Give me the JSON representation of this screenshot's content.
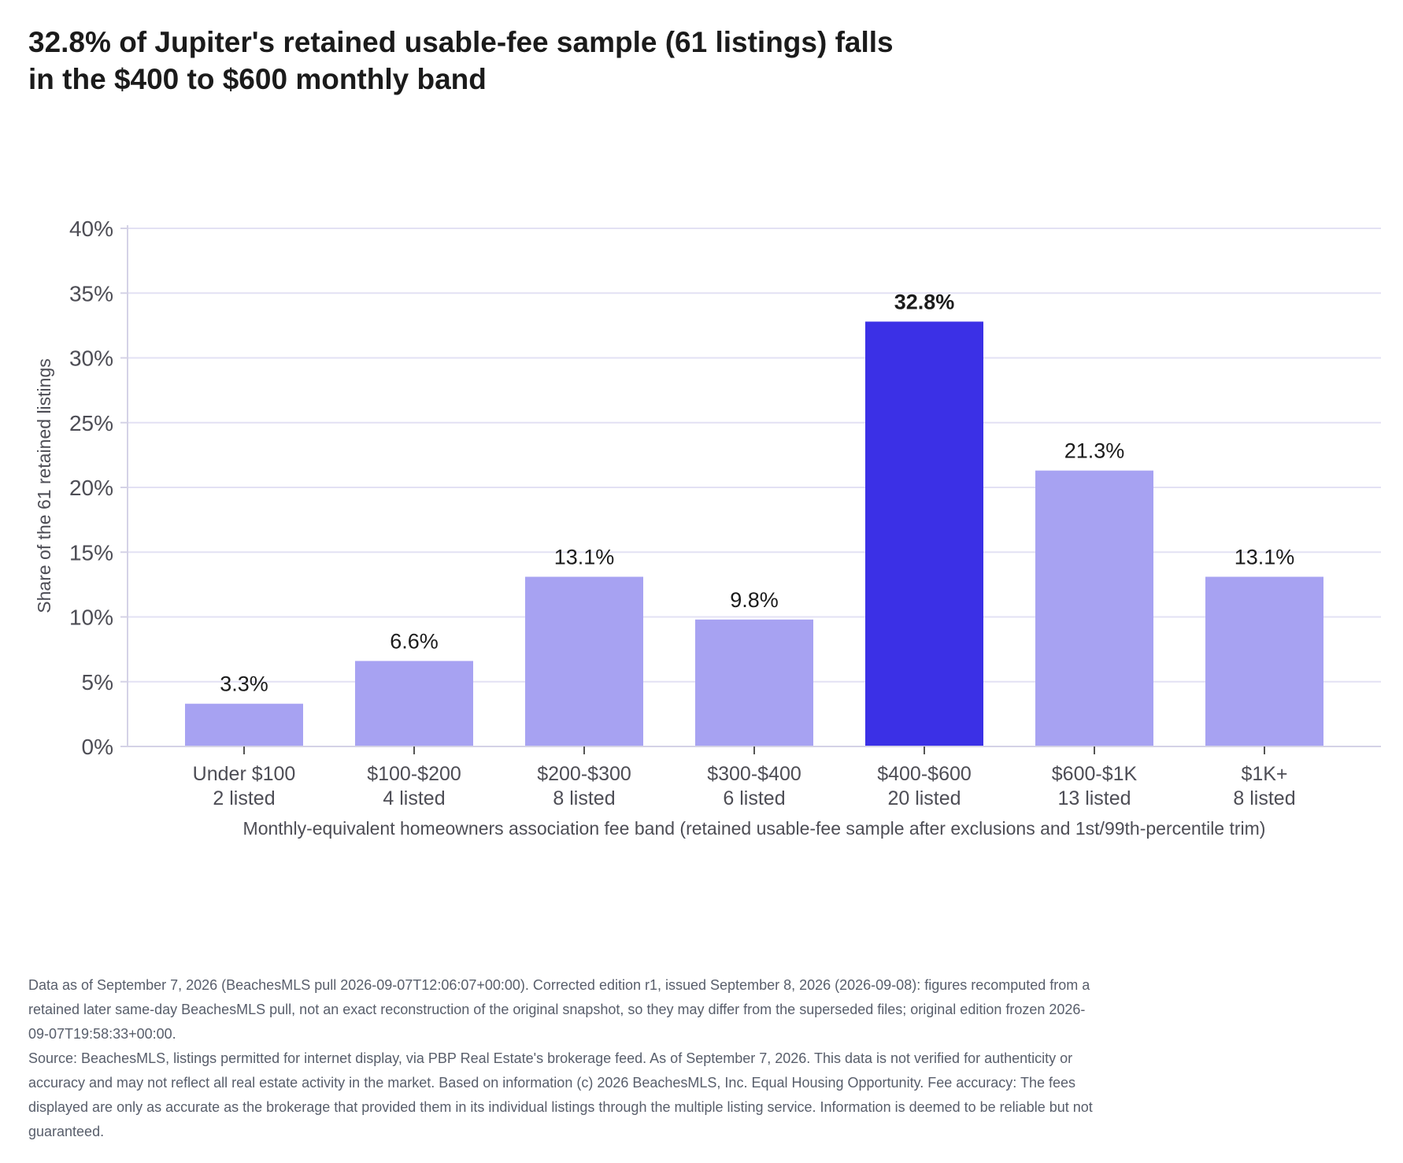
{
  "title_lines": [
    "32.8% of Jupiter's retained usable-fee sample (61 listings) falls",
    "in the $400 to $600 monthly band"
  ],
  "chart_data": {
    "type": "bar",
    "categories": [
      "Under $100",
      "$100-$200",
      "$200-$300",
      "$300-$400",
      "$400-$600",
      "$600-$1K",
      "$1K+"
    ],
    "counts": [
      "2 listed",
      "4 listed",
      "8 listed",
      "6 listed",
      "20 listed",
      "13 listed",
      "8 listed"
    ],
    "values": [
      3.3,
      6.6,
      13.1,
      9.8,
      32.8,
      21.3,
      13.1
    ],
    "data_labels": [
      "3.3%",
      "6.6%",
      "13.1%",
      "9.8%",
      "32.8%",
      "21.3%",
      "13.1%"
    ],
    "highlight_index": 4,
    "ylim": [
      0,
      40
    ],
    "yticks": [
      0,
      5,
      10,
      15,
      20,
      25,
      30,
      35,
      40
    ],
    "ytick_labels": [
      "0%",
      "5%",
      "10%",
      "15%",
      "20%",
      "25%",
      "30%",
      "35%",
      "40%"
    ],
    "ylabel": "Share of the 61 retained listings",
    "xlabel": "Monthly-equivalent homeowners association fee band (retained usable-fee sample after exclusions and 1st/99th-percentile trim)",
    "grid": true,
    "colors": {
      "bar": "#a7a2f2",
      "highlight": "#3b30e6",
      "grid": "#e3e1f4",
      "axis": "#d4d2e6"
    }
  },
  "footnote": {
    "paragraph1": "Data as of September 7, 2026 (BeachesMLS pull 2026-09-07T12:06:07+00:00). Corrected edition r1, issued September 8, 2026 (2026-09-08): figures recomputed from a retained later same-day BeachesMLS pull, not an exact reconstruction of the original snapshot, so they may differ from the superseded files; original edition frozen 2026-09-07T19:58:33+00:00.",
    "paragraph2": "Source: BeachesMLS, listings permitted for internet display, via PBP Real Estate's brokerage feed. As of September 7, 2026. This data is not verified for authenticity or accuracy and may not reflect all real estate activity in the market. Based on information (c) 2026 BeachesMLS, Inc. Equal Housing Opportunity. Fee accuracy: The fees displayed are only as accurate as the brokerage that provided them in its individual listings through the multiple listing service. Information is deemed to be reliable but not guaranteed."
  }
}
